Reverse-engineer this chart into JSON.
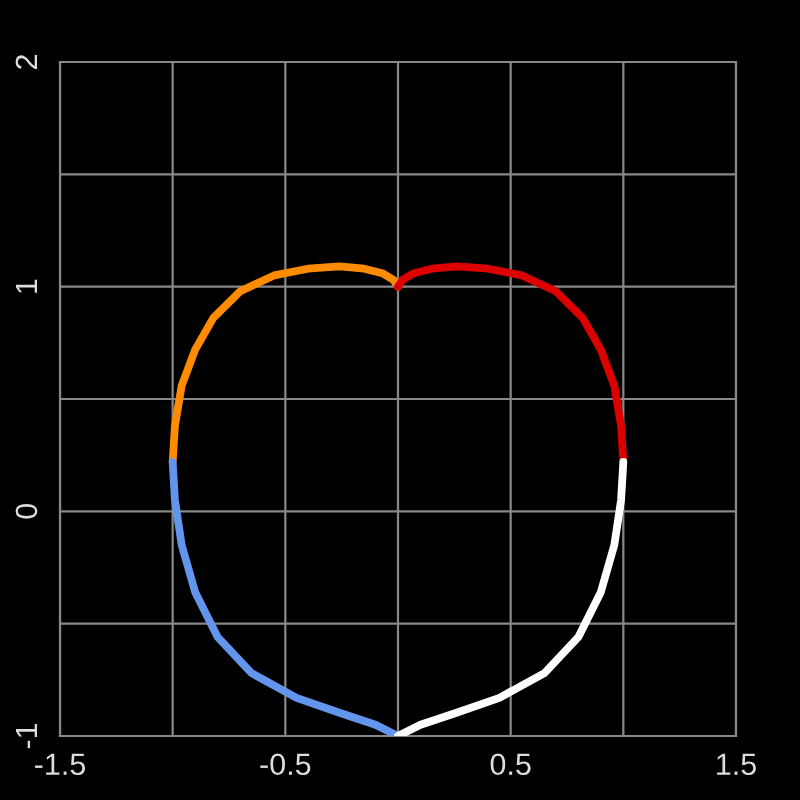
{
  "chart_data": {
    "type": "line",
    "grid": true,
    "xlim": [
      -1.5,
      1.5
    ],
    "ylim": [
      -1,
      2
    ],
    "xticks": [
      -1.5,
      {
        "value": -1,
        "label": null
      },
      -0.5,
      {
        "value": 0,
        "label": null
      },
      0.5,
      {
        "value": 1,
        "label": null
      },
      1.5
    ],
    "yticks": [
      -1,
      {
        "value": -0.5,
        "label": null
      },
      0,
      {
        "value": 0.5,
        "label": null
      },
      1,
      {
        "value": 1.5,
        "label": null
      },
      2
    ],
    "series": [
      {
        "color": "#ff8c00",
        "x": [
          -1,
          -0.99,
          -0.96,
          -0.9,
          -0.82,
          -0.7,
          -0.55,
          -0.4,
          -0.26,
          -0.15,
          -0.07,
          -0.02,
          0
        ],
        "values": [
          0.22,
          0.38,
          0.56,
          0.72,
          0.86,
          0.98,
          1.05,
          1.08,
          1.09,
          1.08,
          1.06,
          1.03,
          1.0
        ]
      },
      {
        "color": "#dd0000",
        "x": [
          0,
          0.02,
          0.07,
          0.15,
          0.26,
          0.4,
          0.55,
          0.7,
          0.82,
          0.9,
          0.96,
          0.99,
          1
        ],
        "values": [
          1.0,
          1.03,
          1.06,
          1.08,
          1.09,
          1.08,
          1.05,
          0.98,
          0.86,
          0.72,
          0.56,
          0.38,
          0.22
        ]
      },
      {
        "color": "#6495ed",
        "x": [
          -1,
          -0.99,
          -0.96,
          -0.9,
          -0.8,
          -0.65,
          -0.45,
          -0.25,
          -0.1,
          0
        ],
        "values": [
          0.22,
          0.05,
          -0.15,
          -0.36,
          -0.56,
          -0.72,
          -0.83,
          -0.9,
          -0.95,
          -1.0
        ]
      },
      {
        "color": "#ffffff",
        "x": [
          0,
          0.1,
          0.25,
          0.45,
          0.65,
          0.8,
          0.9,
          0.96,
          0.99,
          1
        ],
        "values": [
          -1.0,
          -0.95,
          -0.9,
          -0.83,
          -0.72,
          -0.56,
          -0.36,
          -0.15,
          0.05,
          0.22
        ]
      }
    ]
  }
}
